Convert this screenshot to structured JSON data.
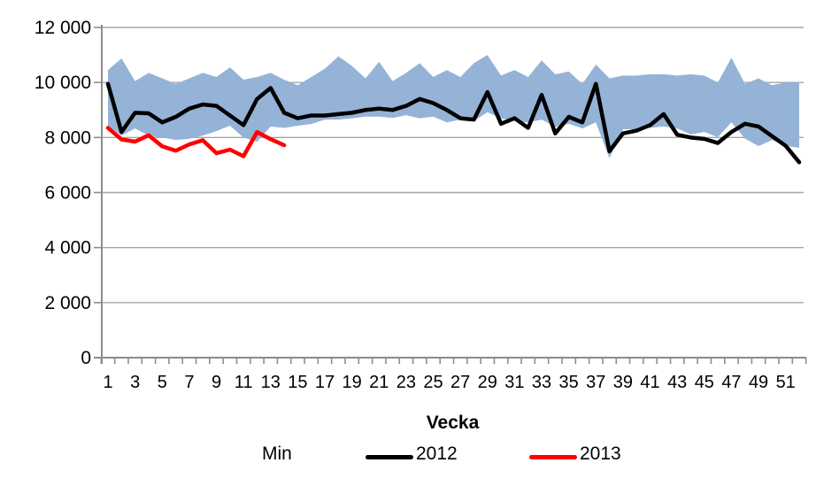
{
  "chart_data": {
    "type": "area+line",
    "title": "",
    "xlabel": "Vecka",
    "ylabel": "",
    "ylim": [
      0,
      12000
    ],
    "y_tick_step": 2000,
    "y_tick_labels": [
      "0",
      "2 000",
      "4 000",
      "6 000",
      "8 000",
      "10 000",
      "12 000"
    ],
    "x_tick_labels": [
      "1",
      "3",
      "5",
      "7",
      "9",
      "11",
      "13",
      "15",
      "17",
      "19",
      "21",
      "23",
      "25",
      "27",
      "29",
      "31",
      "33",
      "35",
      "37",
      "39",
      "41",
      "43",
      "45",
      "47",
      "49",
      "51"
    ],
    "weeks_total": 52,
    "grid": true,
    "legend_position": "bottom",
    "band": {
      "name": "Min",
      "color": "#95B3D7",
      "max": [
        10450,
        10880,
        10050,
        10350,
        10150,
        9950,
        10150,
        10350,
        10200,
        10550,
        10100,
        10200,
        10350,
        10100,
        9900,
        10200,
        10500,
        10950,
        10600,
        10150,
        10750,
        10050,
        10350,
        10700,
        10200,
        10450,
        10200,
        10700,
        11000,
        10250,
        10450,
        10200,
        10800,
        10300,
        10400,
        9950,
        10650,
        10150,
        10250,
        10250,
        10300,
        10300,
        10250,
        10300,
        10250,
        10000,
        10900,
        9950,
        10150,
        9900,
        10000,
        10000
      ],
      "min": [
        8430,
        8070,
        8330,
        8070,
        8000,
        7910,
        7950,
        8070,
        8230,
        8430,
        8000,
        7850,
        8400,
        8350,
        8430,
        8490,
        8650,
        8650,
        8700,
        8760,
        8760,
        8710,
        8810,
        8700,
        8760,
        8550,
        8650,
        8600,
        8920,
        8700,
        8600,
        8550,
        8650,
        8390,
        8500,
        8330,
        8550,
        7250,
        8300,
        8300,
        8350,
        8400,
        8330,
        8110,
        8200,
        8010,
        8550,
        7960,
        7690,
        7910,
        7690,
        7630
      ]
    },
    "series": [
      {
        "name": "2012",
        "color": "#000000",
        "start_week": 1,
        "values": [
          9950,
          8200,
          8900,
          8880,
          8550,
          8750,
          9050,
          9200,
          9150,
          8800,
          8450,
          9400,
          9800,
          8900,
          8700,
          8800,
          8800,
          8850,
          8900,
          9000,
          9050,
          9000,
          9150,
          9400,
          9250,
          9000,
          8700,
          8650,
          9650,
          8500,
          8700,
          8350,
          9550,
          8150,
          8750,
          8550,
          9950,
          7500,
          8150,
          8250,
          8450,
          8850,
          8100,
          8000,
          7950,
          7800,
          8200,
          8500,
          8400,
          8050,
          7700,
          7100
        ]
      },
      {
        "name": "2013",
        "color": "#FF0000",
        "start_week": 1,
        "values": [
          8350,
          7930,
          7850,
          8080,
          7680,
          7520,
          7750,
          7900,
          7430,
          7560,
          7320,
          8200,
          7940,
          7720
        ]
      }
    ]
  },
  "legend": {
    "min_label": "Min",
    "label_2012": "2012",
    "label_2013": "2013"
  },
  "colors": {
    "band": "#95B3D7",
    "line_2012": "#000000",
    "line_2013": "#FF0000",
    "gridline": "#A6A6A6",
    "axis": "#8C8C8C",
    "text": "#000000"
  }
}
